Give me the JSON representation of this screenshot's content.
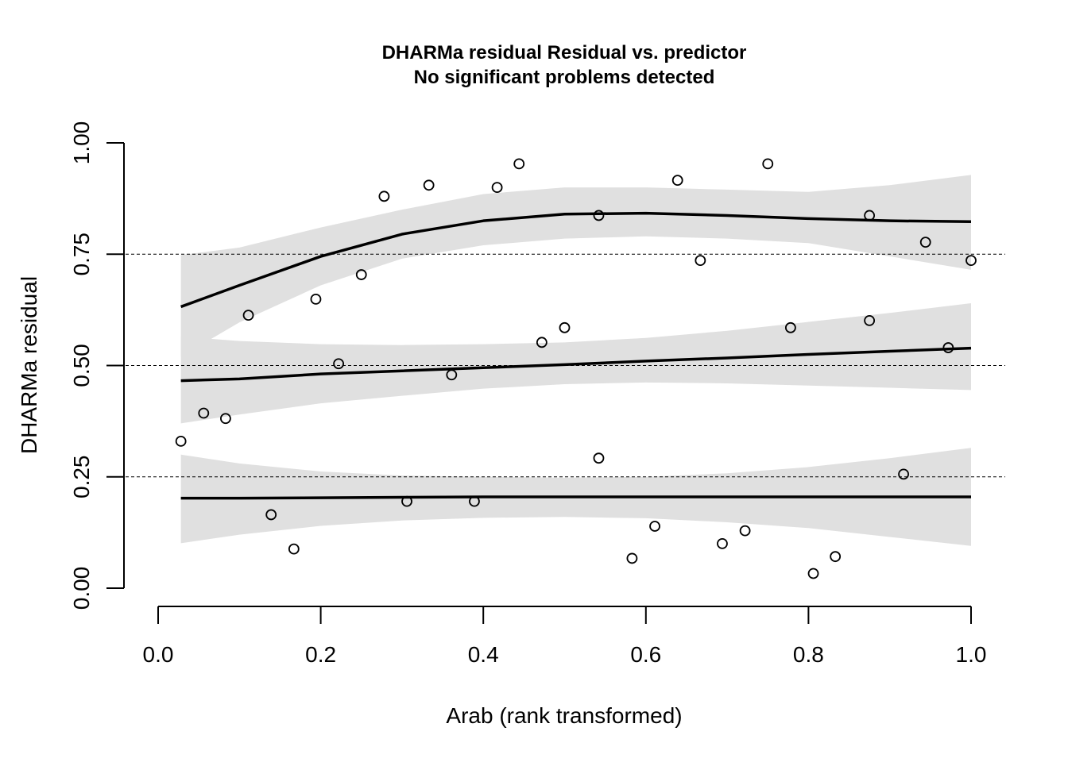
{
  "chart_data": {
    "type": "scatter",
    "title": "DHARMa residual Residual vs. predictor",
    "subtitle": "No significant problems detected",
    "xlabel": "Arab (rank transformed)",
    "ylabel": "DHARMa residual",
    "xlim": [
      0.0,
      1.0
    ],
    "ylim": [
      0.0,
      1.0
    ],
    "x_ticks": [
      "0.0",
      "0.2",
      "0.4",
      "0.6",
      "0.8",
      "1.0"
    ],
    "y_ticks": [
      "0.00",
      "0.25",
      "0.50",
      "0.75",
      "1.00"
    ],
    "reference_lines": [
      0.25,
      0.5,
      0.75
    ],
    "points": [
      [
        0.028,
        0.33
      ],
      [
        0.056,
        0.393
      ],
      [
        0.083,
        0.381
      ],
      [
        0.111,
        0.613
      ],
      [
        0.139,
        0.165
      ],
      [
        0.167,
        0.088
      ],
      [
        0.194,
        0.649
      ],
      [
        0.222,
        0.504
      ],
      [
        0.25,
        0.704
      ],
      [
        0.278,
        0.88
      ],
      [
        0.306,
        0.195
      ],
      [
        0.333,
        0.905
      ],
      [
        0.361,
        0.479
      ],
      [
        0.389,
        0.195
      ],
      [
        0.417,
        0.9
      ],
      [
        0.444,
        0.953
      ],
      [
        0.472,
        0.552
      ],
      [
        0.5,
        0.585
      ],
      [
        0.542,
        0.837
      ],
      [
        0.542,
        0.292
      ],
      [
        0.583,
        0.067
      ],
      [
        0.611,
        0.139
      ],
      [
        0.639,
        0.916
      ],
      [
        0.667,
        0.736
      ],
      [
        0.694,
        0.1
      ],
      [
        0.722,
        0.129
      ],
      [
        0.75,
        0.953
      ],
      [
        0.778,
        0.585
      ],
      [
        0.806,
        0.033
      ],
      [
        0.833,
        0.071
      ],
      [
        0.875,
        0.837
      ],
      [
        0.875,
        0.601
      ],
      [
        0.917,
        0.256
      ],
      [
        0.944,
        0.777
      ],
      [
        0.972,
        0.54
      ],
      [
        1.0,
        0.736
      ]
    ],
    "quantile_fits": [
      {
        "quantile": 0.75,
        "x": [
          0.028,
          0.1,
          0.2,
          0.3,
          0.4,
          0.5,
          0.6,
          0.7,
          0.8,
          0.9,
          1.0
        ],
        "fit": [
          0.632,
          0.68,
          0.745,
          0.795,
          0.825,
          0.84,
          0.842,
          0.837,
          0.83,
          0.825,
          0.823
        ],
        "lower": [
          0.52,
          0.597,
          0.68,
          0.74,
          0.77,
          0.785,
          0.79,
          0.785,
          0.775,
          0.745,
          0.715
        ],
        "upper": [
          0.748,
          0.765,
          0.81,
          0.85,
          0.885,
          0.9,
          0.9,
          0.895,
          0.89,
          0.905,
          0.928
        ]
      },
      {
        "quantile": 0.5,
        "x": [
          0.028,
          0.1,
          0.2,
          0.3,
          0.4,
          0.5,
          0.6,
          0.7,
          0.8,
          0.9,
          1.0
        ],
        "fit": [
          0.466,
          0.47,
          0.481,
          0.488,
          0.495,
          0.502,
          0.51,
          0.517,
          0.525,
          0.532,
          0.539
        ],
        "lower": [
          0.37,
          0.39,
          0.415,
          0.432,
          0.448,
          0.458,
          0.462,
          0.46,
          0.455,
          0.45,
          0.445
        ],
        "upper": [
          0.565,
          0.555,
          0.548,
          0.546,
          0.548,
          0.552,
          0.562,
          0.578,
          0.598,
          0.618,
          0.64
        ]
      },
      {
        "quantile": 0.25,
        "x": [
          0.028,
          0.1,
          0.2,
          0.3,
          0.4,
          0.5,
          0.6,
          0.7,
          0.8,
          0.9,
          1.0
        ],
        "fit": [
          0.202,
          0.202,
          0.203,
          0.204,
          0.205,
          0.205,
          0.205,
          0.205,
          0.205,
          0.205,
          0.205
        ],
        "lower": [
          0.101,
          0.12,
          0.14,
          0.152,
          0.158,
          0.16,
          0.157,
          0.148,
          0.135,
          0.115,
          0.095
        ],
        "upper": [
          0.3,
          0.28,
          0.262,
          0.253,
          0.25,
          0.248,
          0.25,
          0.258,
          0.272,
          0.292,
          0.315
        ]
      }
    ],
    "colors": {
      "ribbon": "#e0e0e0",
      "line": "#000000",
      "reference": "#000000"
    }
  }
}
